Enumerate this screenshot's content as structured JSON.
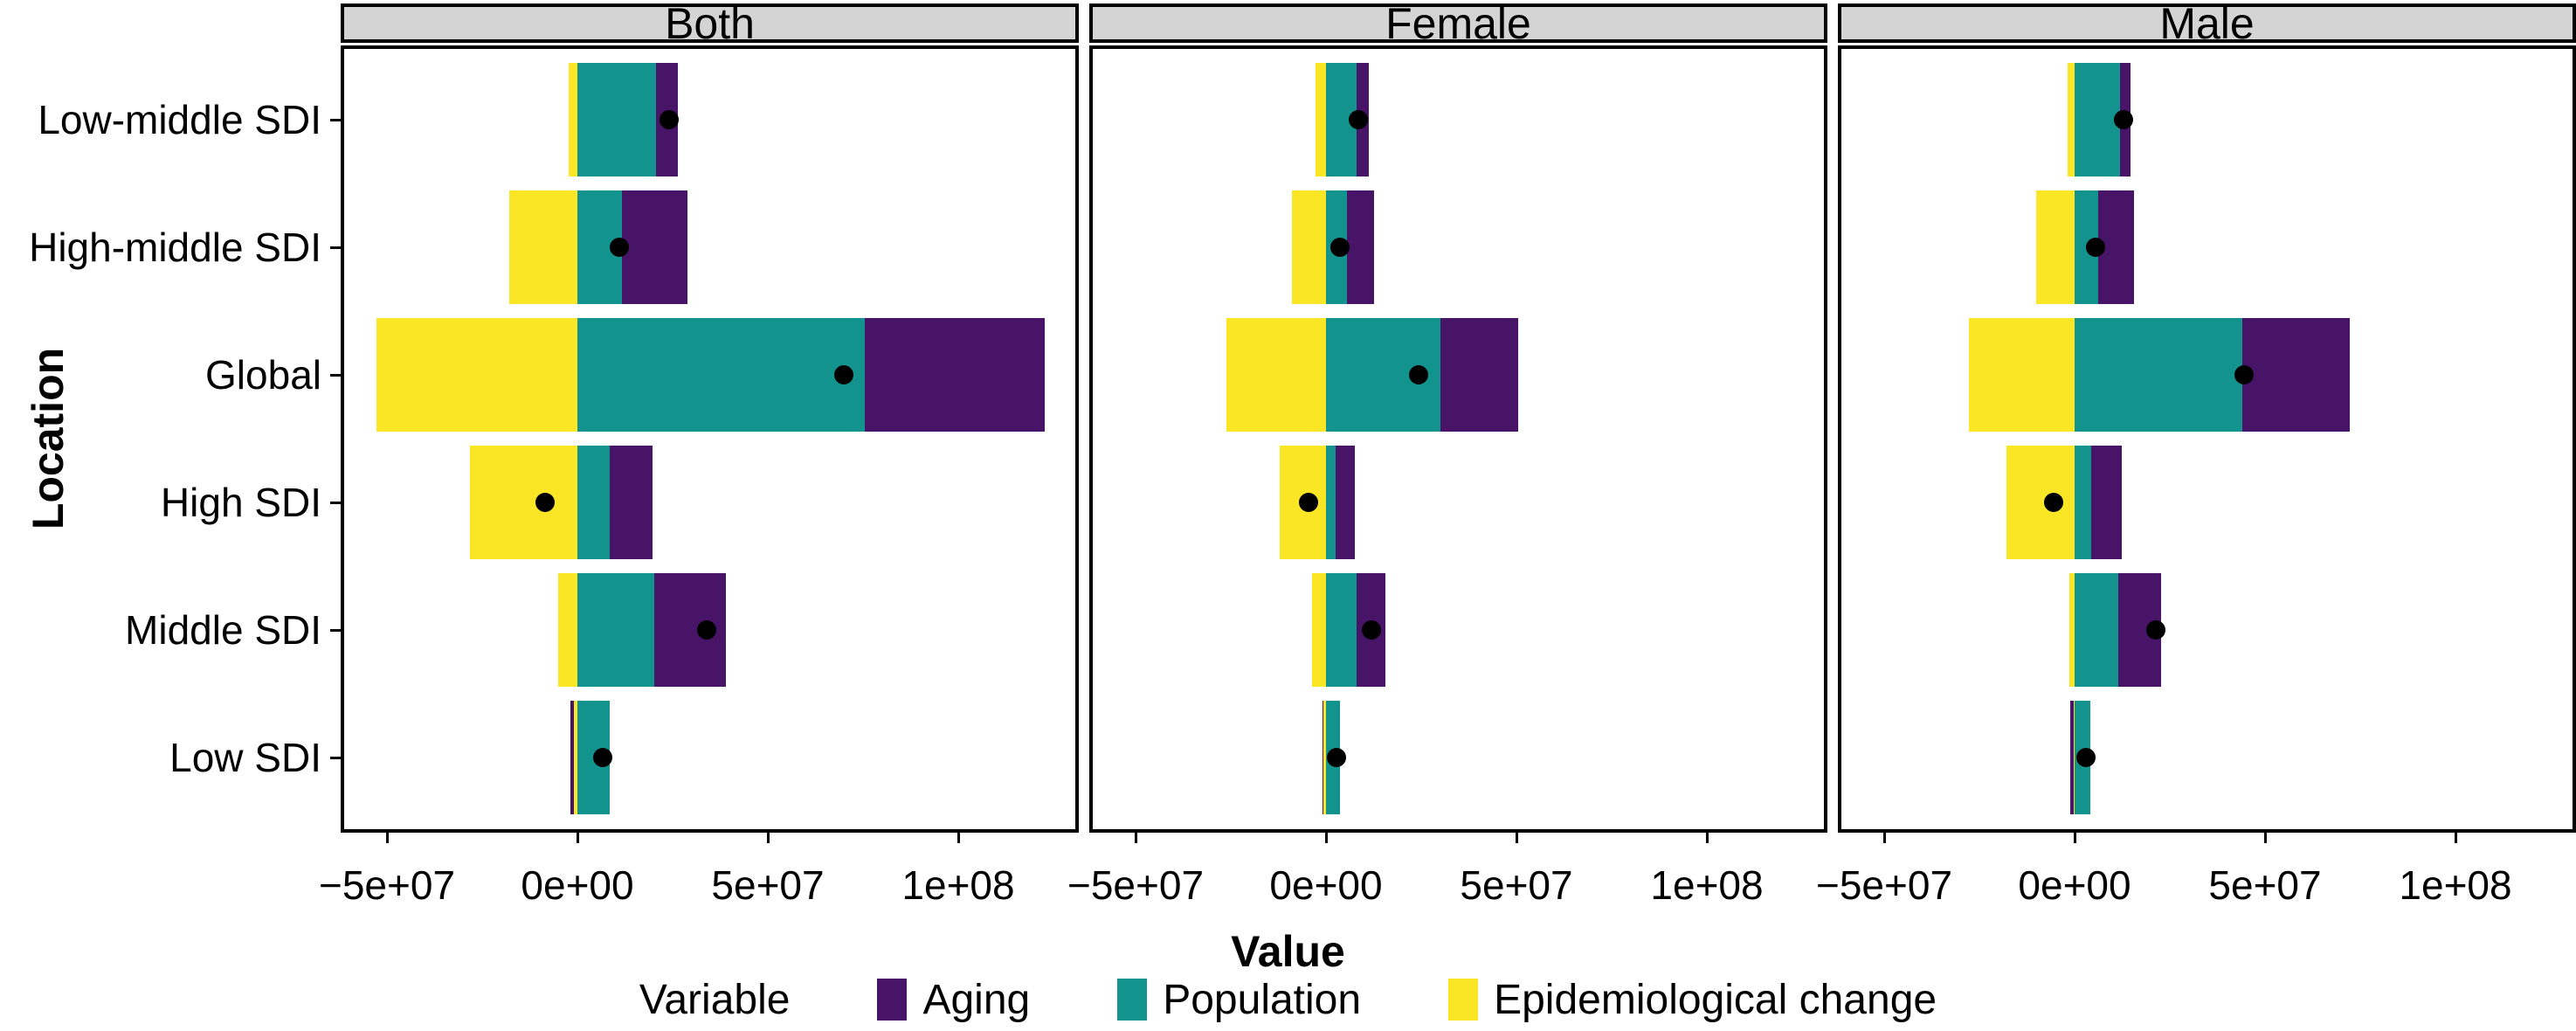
{
  "figure": {
    "x_axis_title": "Value",
    "y_axis_title": "Location",
    "legend_title": "Variable",
    "colors": {
      "aging": "#481467",
      "population": "#13938D",
      "epidemiological_change": "#FBE625",
      "net_dot": "#000000",
      "strip_background": "#D4D4D4",
      "border": "#000000",
      "panel_background": "#FFFFFF"
    }
  },
  "chart_data": {
    "type": "bar",
    "subtype": "horizontal-stacked-faceted-decomposition",
    "facets": [
      "Both",
      "Female",
      "Male"
    ],
    "categories": [
      "Low-middle SDI",
      "High-middle SDI",
      "Global",
      "High SDI",
      "Middle SDI",
      "Low SDI"
    ],
    "legend": [
      {
        "name": "Aging",
        "key": "aging"
      },
      {
        "name": "Population",
        "key": "population"
      },
      {
        "name": "Epidemiological change",
        "key": "epidemiological_change"
      }
    ],
    "xlabel": "Value",
    "ylabel": "Location",
    "xlim": [
      -62200000,
      131700000
    ],
    "grid": false,
    "legend_position": "bottom",
    "x_ticks": [
      {
        "value": -50000000,
        "label": "−5e+07"
      },
      {
        "value": 0,
        "label": "0e+00"
      },
      {
        "value": 50000000,
        "label": "5e+07"
      },
      {
        "value": 100000000,
        "label": "1e+08"
      }
    ],
    "series_by_facet": {
      "Both": [
        {
          "location": "Low-middle SDI",
          "aging": 5800000,
          "population": 20600000,
          "epidemiological_change": -2300000,
          "net": 24100000
        },
        {
          "location": "High-middle SDI",
          "aging": 17100000,
          "population": 11800000,
          "epidemiological_change": -18000000,
          "net": 10900000
        },
        {
          "location": "Global",
          "aging": 47200000,
          "population": 75500000,
          "epidemiological_change": -52800000,
          "net": 69900000
        },
        {
          "location": "High SDI",
          "aging": 11300000,
          "population": 8400000,
          "epidemiological_change": -28300000,
          "net": -8600000
        },
        {
          "location": "Middle SDI",
          "aging": 18900000,
          "population": 20100000,
          "epidemiological_change": -5000000,
          "net": 34000000
        },
        {
          "location": "Low SDI",
          "aging": -800000,
          "population": 8400000,
          "epidemiological_change": -1000000,
          "net": 6600000
        }
      ],
      "Female": [
        {
          "location": "Low-middle SDI",
          "aging": 3300000,
          "population": 8000000,
          "epidemiological_change": -2800000,
          "net": 8500000
        },
        {
          "location": "High-middle SDI",
          "aging": 7100000,
          "population": 5500000,
          "epidemiological_change": -8900000,
          "net": 3700000
        },
        {
          "location": "Global",
          "aging": 20400000,
          "population": 30000000,
          "epidemiological_change": -26200000,
          "net": 24200000
        },
        {
          "location": "High SDI",
          "aging": 5000000,
          "population": 2600000,
          "epidemiological_change": -12200000,
          "net": -4600000
        },
        {
          "location": "Middle SDI",
          "aging": 7700000,
          "population": 8000000,
          "epidemiological_change": -3700000,
          "net": 12000000
        },
        {
          "location": "Low SDI",
          "aging": -200000,
          "population": 3700000,
          "epidemiological_change": -800000,
          "net": 2700000
        }
      ],
      "Male": [
        {
          "location": "Low-middle SDI",
          "aging": 2800000,
          "population": 11900000,
          "epidemiological_change": -1800000,
          "net": 12900000
        },
        {
          "location": "High-middle SDI",
          "aging": 9500000,
          "population": 6100000,
          "epidemiological_change": -10000000,
          "net": 5600000
        },
        {
          "location": "Global",
          "aging": 28100000,
          "population": 44100000,
          "epidemiological_change": -27700000,
          "net": 44500000
        },
        {
          "location": "High SDI",
          "aging": 8100000,
          "population": 4400000,
          "epidemiological_change": -18000000,
          "net": -5500000
        },
        {
          "location": "Middle SDI",
          "aging": 11200000,
          "population": 11500000,
          "epidemiological_change": -1400000,
          "net": 21300000
        },
        {
          "location": "Low SDI",
          "aging": -900000,
          "population": 4200000,
          "epidemiological_change": -300000,
          "net": 3000000
        }
      ]
    }
  }
}
